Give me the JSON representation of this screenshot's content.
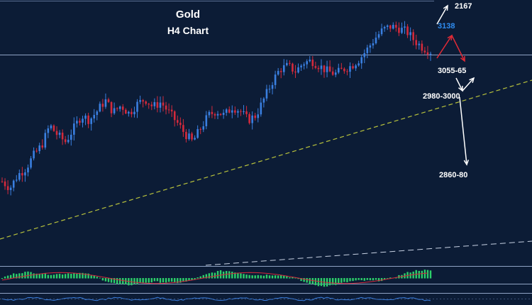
{
  "chart_data": {
    "type": "candlestick",
    "title": "Gold",
    "subtitle": "H4 Chart",
    "xlabel": "",
    "ylabel": "",
    "ylim": [
      2780,
      3180
    ],
    "grid": false,
    "colors": {
      "background": "#0c1c36",
      "up_candle": "#3a7fe0",
      "down_candle": "#d42a3c",
      "trendline": "#b8c23c",
      "current_price_line": "#8fa3c4",
      "price_label": "#2f8cf0",
      "bullish_arrow": "#ffffff",
      "bearish_arrow": "#e12a36",
      "histogram": "#2cd06a",
      "signal_line": "#d42a3c",
      "oscillator_line": "#3a7fe0"
    },
    "current_price": 3138,
    "price_path": [
      2905,
      2895,
      2915,
      2925,
      2945,
      2960,
      2990,
      2975,
      2965,
      2985,
      3005,
      2998,
      3012,
      3028,
      3010,
      3020,
      3008,
      3022,
      3030,
      3018,
      3025,
      3010,
      2995,
      2978,
      2965,
      2985,
      3005,
      3012,
      3005,
      3018,
      3012,
      2998,
      3005,
      3030,
      3055,
      3075,
      3080,
      3072,
      3085,
      3088,
      3080,
      3072,
      3068,
      3075,
      3080,
      3090,
      3105,
      3122,
      3135,
      3140,
      3137,
      3132,
      3118,
      3108,
      3102
    ],
    "annotations": [
      {
        "label": "2167",
        "direction": "up"
      },
      {
        "label": "3138",
        "direction": "current"
      },
      {
        "label": "3055-65",
        "direction": "down"
      },
      {
        "label": "2980-3000",
        "direction": "up"
      },
      {
        "label": "2860-80",
        "direction": "down"
      }
    ]
  }
}
